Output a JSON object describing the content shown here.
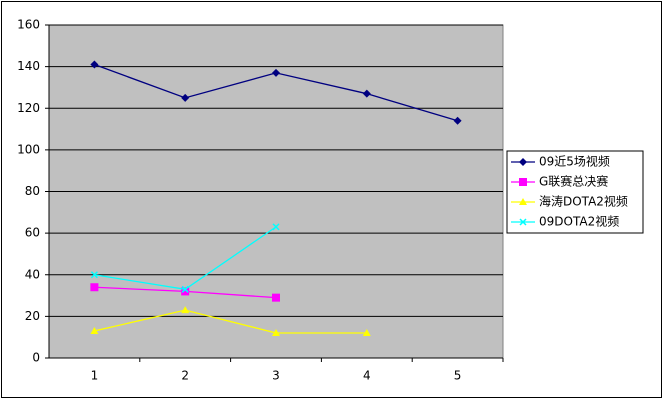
{
  "chart_data": {
    "type": "line",
    "categories": [
      "1",
      "2",
      "3",
      "4",
      "5"
    ],
    "series": [
      {
        "name": "09近5场视频",
        "color": "#000080",
        "marker": "diamond",
        "values": [
          141,
          125,
          137,
          127,
          114
        ]
      },
      {
        "name": "G联赛总决赛",
        "color": "#FF00FF",
        "marker": "square",
        "values": [
          34,
          32,
          29,
          null,
          null
        ]
      },
      {
        "name": "海涛DOTA2视频",
        "color": "#FFFF00",
        "marker": "triangle",
        "values": [
          13,
          23,
          12,
          12,
          null
        ]
      },
      {
        "name": "09DOTA2视频",
        "color": "#00FFFF",
        "marker": "x",
        "values": [
          40,
          33,
          63,
          null,
          null
        ]
      }
    ],
    "ylim": [
      0,
      160
    ],
    "yticks": [
      0,
      20,
      40,
      60,
      80,
      100,
      120,
      140,
      160
    ],
    "grid": true,
    "legend": "right"
  }
}
